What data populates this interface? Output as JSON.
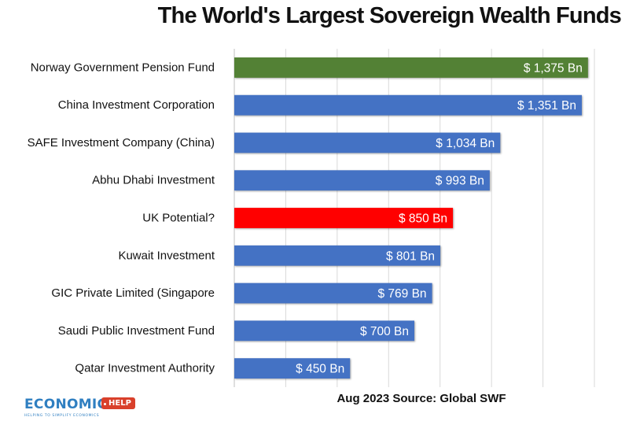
{
  "chart_data": {
    "type": "bar",
    "orientation": "horizontal",
    "title": "The World's Largest Sovereign Wealth Funds",
    "categories": [
      "Norway Government Pension Fund",
      "China Investment Corporation",
      "SAFE Investment Company (China)",
      "Abhu Dhabi Investment",
      "UK Potential?",
      "Kuwait Investment",
      "GIC Private Limited (Singapore",
      "Saudi Public Investment Fund",
      "Qatar Investment Authority"
    ],
    "values": [
      1375,
      1351,
      1034,
      993,
      850,
      801,
      769,
      700,
      450
    ],
    "value_labels": [
      "$ 1,375 Bn",
      "$ 1,351 Bn",
      "$ 1,034 Bn",
      "$ 993 Bn",
      "$ 850 Bn",
      "$ 801 Bn",
      "$ 769 Bn",
      "$ 700 Bn",
      "$ 450 Bn"
    ],
    "bar_colors": [
      "#538135",
      "#4472c4",
      "#4472c4",
      "#4472c4",
      "#ff0000",
      "#4472c4",
      "#4472c4",
      "#4472c4",
      "#4472c4"
    ],
    "xlim": [
      0,
      1400
    ],
    "gridline_step": 200,
    "grid": true,
    "xlabel": "",
    "ylabel": ""
  },
  "source_note": "Aug 2023 Source: Global SWF",
  "logo": {
    "word": "ECONOMICS",
    "tag": "HELP",
    "tagline": "HELPING TO SIMPLIFY ECONOMICS"
  }
}
